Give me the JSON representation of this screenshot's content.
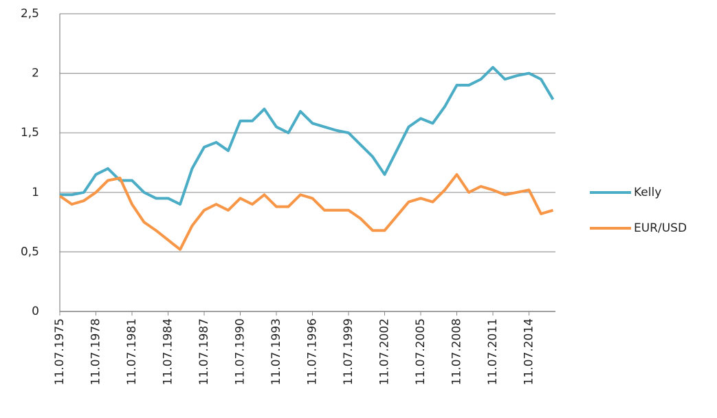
{
  "chart_data": {
    "type": "line",
    "categories": [
      "11.07.1975",
      null,
      null,
      "11.07.1978",
      null,
      null,
      "11.07.1981",
      null,
      null,
      "11.07.1984",
      null,
      null,
      "11.07.1987",
      null,
      null,
      "11.07.1990",
      null,
      null,
      "11.07.1993",
      null,
      null,
      "11.07.1996",
      null,
      null,
      "11.07.1999",
      null,
      null,
      "11.07.2002",
      null,
      null,
      "11.07.2005",
      null,
      null,
      "11.07.2008",
      null,
      null,
      "11.07.2011",
      null,
      null,
      "11.07.2014",
      null,
      null
    ],
    "series": [
      {
        "name": "Kelly",
        "color": "#4bacc6",
        "values": [
          0.98,
          0.98,
          1.0,
          1.15,
          1.2,
          1.1,
          1.1,
          1.0,
          0.95,
          0.95,
          0.9,
          1.2,
          1.38,
          1.42,
          1.35,
          1.6,
          1.6,
          1.7,
          1.55,
          1.5,
          1.68,
          1.58,
          1.55,
          1.52,
          1.5,
          1.4,
          1.3,
          1.15,
          1.35,
          1.55,
          1.62,
          1.58,
          1.72,
          1.9,
          1.9,
          1.95,
          2.05,
          1.95,
          1.98,
          2.0,
          1.95,
          1.78
        ]
      },
      {
        "name": "EUR/USD",
        "color": "#f79646",
        "values": [
          0.97,
          0.9,
          0.93,
          1.0,
          1.1,
          1.12,
          0.9,
          0.75,
          0.68,
          0.6,
          0.52,
          0.72,
          0.85,
          0.9,
          0.85,
          0.95,
          0.9,
          0.98,
          0.88,
          0.88,
          0.98,
          0.95,
          0.85,
          0.85,
          0.85,
          0.78,
          0.68,
          0.68,
          0.8,
          0.92,
          0.95,
          0.92,
          1.02,
          1.15,
          1.0,
          1.05,
          1.02,
          0.98,
          1.0,
          1.02,
          0.82,
          0.85
        ]
      }
    ],
    "ylim": [
      0,
      2.5
    ],
    "yticks": [
      0,
      {
        "value": 0.5,
        "label": "0,5"
      },
      1,
      {
        "value": 1.5,
        "label": "1,5"
      },
      2,
      {
        "value": 2.5,
        "label": "2,5"
      }
    ],
    "grid": true,
    "legend": "right"
  }
}
